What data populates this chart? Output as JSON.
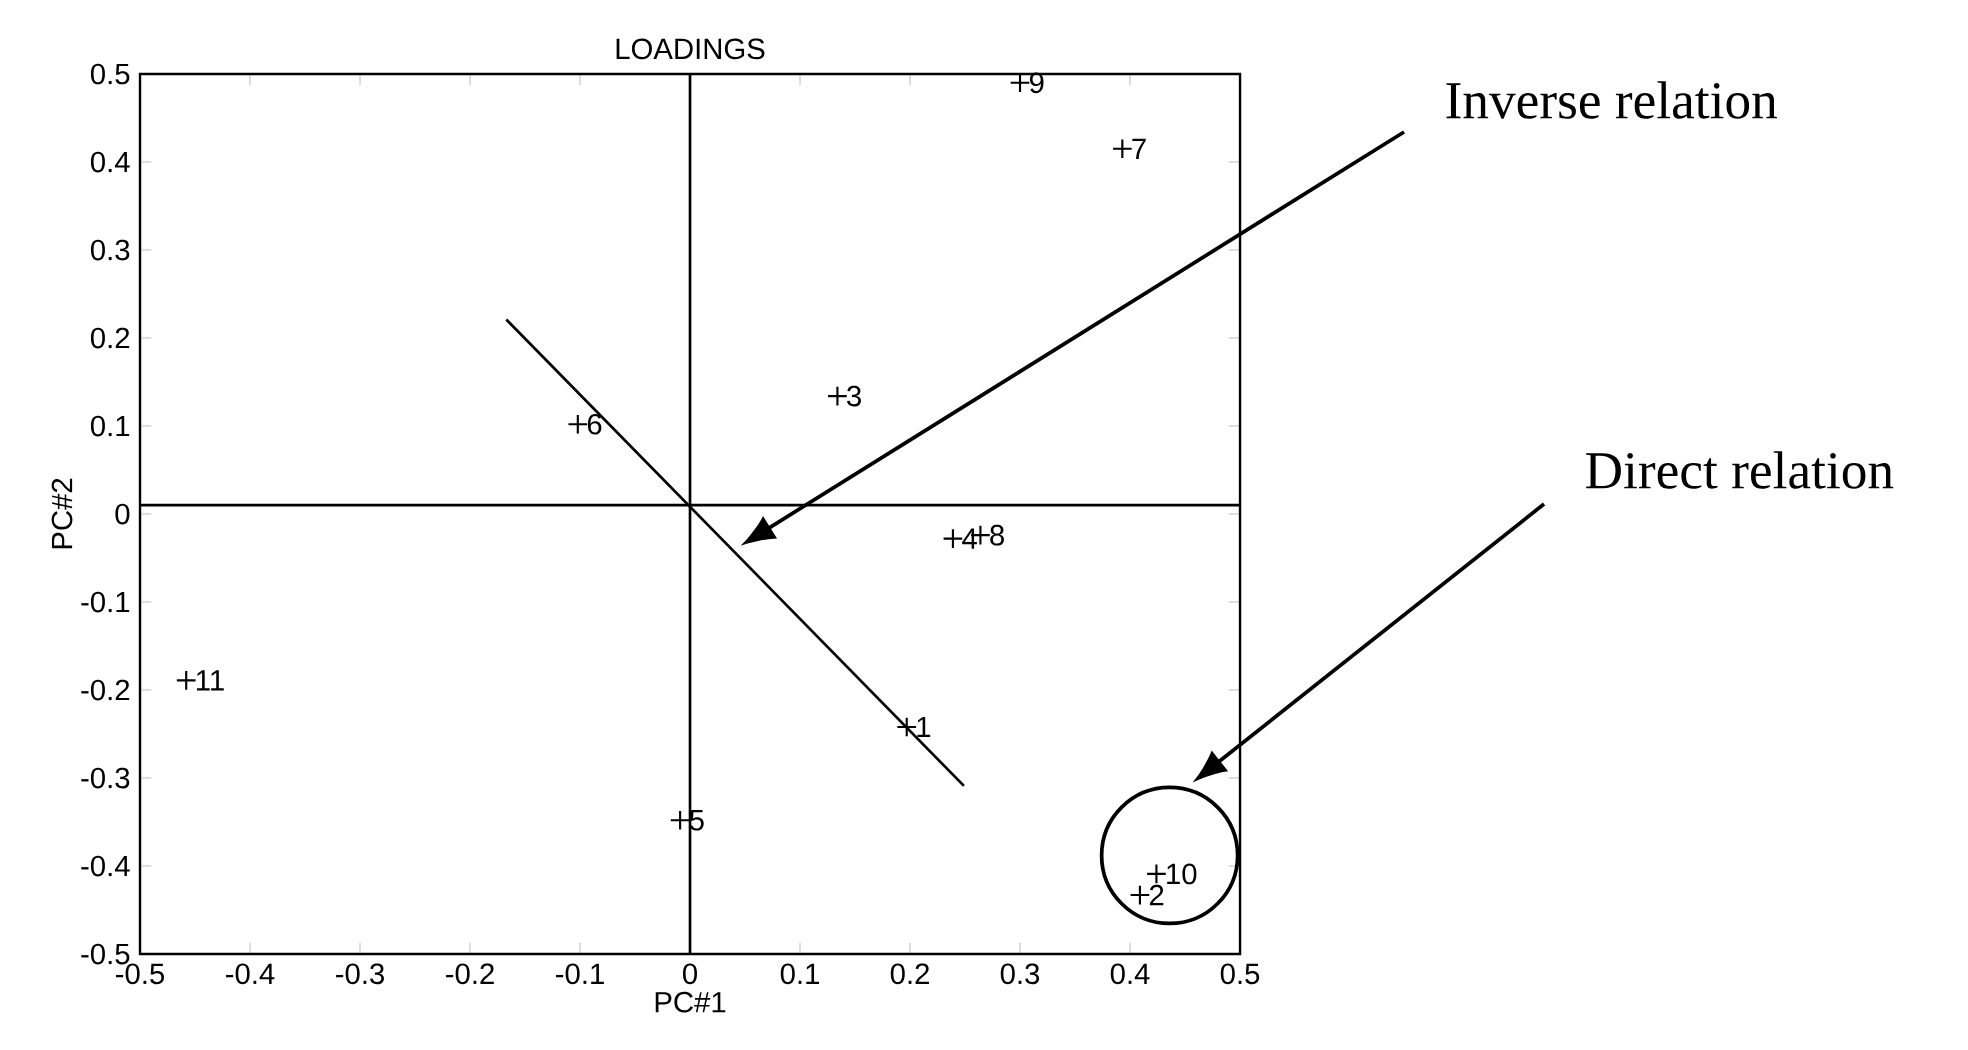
{
  "chart_data": {
    "type": "scatter",
    "title": "LOADINGS",
    "xlabel": "PC#1",
    "ylabel": "PC#2",
    "xlim": [
      -0.5,
      0.5
    ],
    "ylim": [
      -0.5,
      0.5
    ],
    "xticks": [
      -0.5,
      -0.4,
      -0.3,
      -0.2,
      -0.1,
      0,
      0.1,
      0.2,
      0.3,
      0.4,
      0.5
    ],
    "yticks": [
      -0.5,
      -0.4,
      -0.3,
      -0.2,
      -0.1,
      0,
      0.1,
      0.2,
      0.3,
      0.4,
      0.5
    ],
    "marker": "cross",
    "grid": false,
    "series": [
      {
        "name": "1",
        "color": "#000000",
        "x": [
          0.197
        ],
        "values": [
          -0.242
        ]
      },
      {
        "name": "2",
        "color": "#000000",
        "x": [
          0.409
        ],
        "values": [
          -0.433
        ]
      },
      {
        "name": "3",
        "color": "#000000",
        "x": [
          0.134
        ],
        "values": [
          0.134
        ]
      },
      {
        "name": "4",
        "color": "#000000",
        "x": [
          0.239
        ],
        "values": [
          -0.028
        ]
      },
      {
        "name": "5",
        "color": "#000000",
        "x": [
          -0.009
        ],
        "values": [
          -0.348
        ]
      },
      {
        "name": "6",
        "color": "#000000",
        "x": [
          -0.102
        ],
        "values": [
          0.102
        ]
      },
      {
        "name": "7",
        "color": "#000000",
        "x": [
          0.393
        ],
        "values": [
          0.415
        ]
      },
      {
        "name": "8",
        "color": "#000000",
        "x": [
          0.264
        ],
        "values": [
          -0.024
        ]
      },
      {
        "name": "9",
        "color": "#000000",
        "x": [
          0.3
        ],
        "values": [
          0.49
        ]
      },
      {
        "name": "10",
        "color": "#000000",
        "x": [
          0.424
        ],
        "values": [
          -0.409
        ]
      },
      {
        "name": "11",
        "color": "#000000",
        "x": [
          -0.458
        ],
        "values": [
          -0.189
        ]
      },
      {
        "type": "line",
        "marker": "none",
        "color": "#000000",
        "x": [
          -0.167,
          0.249
        ],
        "values": [
          0.221,
          -0.309
        ]
      }
    ],
    "ref_lines": [
      {
        "axis": "y",
        "value": 0.01,
        "color": "#000000"
      },
      {
        "axis": "x",
        "value": 0,
        "color": "#000000"
      }
    ],
    "annotations": [
      "Inverse relation",
      "Direct relation"
    ]
  }
}
